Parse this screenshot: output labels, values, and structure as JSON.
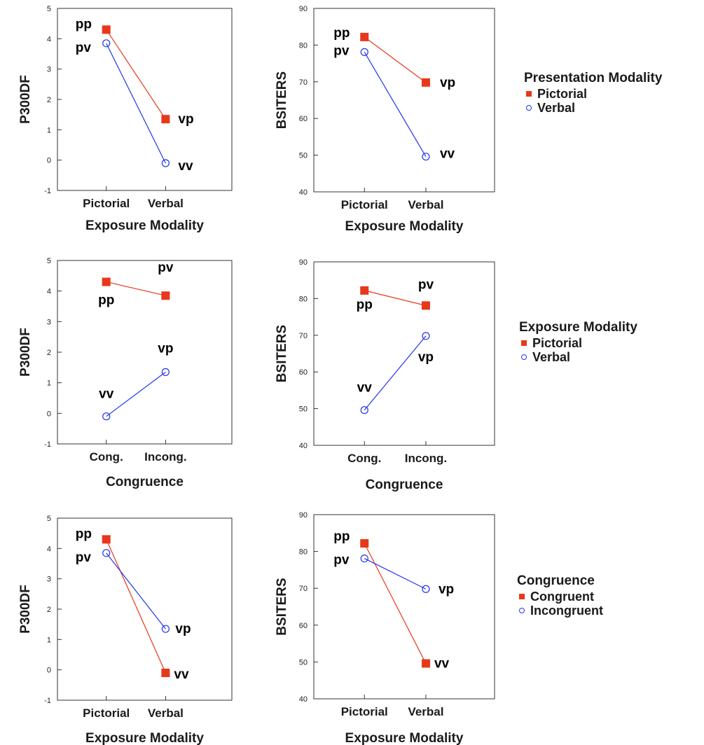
{
  "colors": {
    "red": "#e8381b",
    "blue": "#2233ee"
  },
  "legends": [
    {
      "title": "Presentation Modality",
      "items": [
        {
          "label": "Pictorial",
          "marker": "red-square"
        },
        {
          "label": "Verbal",
          "marker": "blue-circle"
        }
      ]
    },
    {
      "title": "Exposure Modality",
      "items": [
        {
          "label": "Pictorial",
          "marker": "red-square"
        },
        {
          "label": "Verbal",
          "marker": "blue-circle"
        }
      ]
    },
    {
      "title": "Congruence",
      "items": [
        {
          "label": "Congruent",
          "marker": "red-square"
        },
        {
          "label": "Incongruent",
          "marker": "blue-circle"
        }
      ]
    }
  ],
  "chart_data": [
    {
      "type": "line",
      "xlabel": "Exposure Modality",
      "ylabel": "P300DF",
      "categories": [
        "Pictorial",
        "Verbal"
      ],
      "ylim": [
        -1,
        5
      ],
      "yticks": [
        -1,
        0,
        1,
        2,
        3,
        4,
        5
      ],
      "series": [
        {
          "name": "Pictorial",
          "color": "red",
          "marker": "square",
          "values": [
            4.3,
            1.35
          ],
          "point_labels": [
            "pp",
            "vp"
          ]
        },
        {
          "name": "Verbal",
          "color": "blue",
          "marker": "circle",
          "values": [
            3.85,
            -0.1
          ],
          "point_labels": [
            "pv",
            "vv"
          ]
        }
      ]
    },
    {
      "type": "line",
      "xlabel": "Exposure Modality",
      "ylabel": "BSITERS",
      "categories": [
        "Pictorial",
        "Verbal"
      ],
      "ylim": [
        40,
        90
      ],
      "yticks": [
        40,
        50,
        60,
        70,
        80,
        90
      ],
      "series": [
        {
          "name": "Pictorial",
          "color": "red",
          "marker": "square",
          "values": [
            82.2,
            69.8
          ],
          "point_labels": [
            "pp",
            "vp"
          ]
        },
        {
          "name": "Verbal",
          "color": "blue",
          "marker": "circle",
          "values": [
            78.1,
            49.6
          ],
          "point_labels": [
            "pv",
            "vv"
          ]
        }
      ]
    },
    {
      "type": "line",
      "xlabel": "Congruence",
      "ylabel": "P300DF",
      "categories": [
        "Cong.",
        "Incong."
      ],
      "ylim": [
        -1,
        5
      ],
      "yticks": [
        -1,
        0,
        1,
        2,
        3,
        4,
        5
      ],
      "series": [
        {
          "name": "Pictorial",
          "color": "red",
          "marker": "square",
          "values": [
            4.3,
            3.85
          ],
          "point_labels": [
            "pp",
            "pv"
          ]
        },
        {
          "name": "Verbal",
          "color": "blue",
          "marker": "circle",
          "values": [
            -0.1,
            1.35
          ],
          "point_labels": [
            "vv",
            "vp"
          ]
        }
      ]
    },
    {
      "type": "line",
      "xlabel": "Congruence",
      "ylabel": "BSITERS",
      "categories": [
        "Cong.",
        "Incong."
      ],
      "ylim": [
        40,
        90
      ],
      "yticks": [
        40,
        50,
        60,
        70,
        80,
        90
      ],
      "series": [
        {
          "name": "Pictorial",
          "color": "red",
          "marker": "square",
          "values": [
            82.2,
            78.1
          ],
          "point_labels": [
            "pp",
            "pv"
          ]
        },
        {
          "name": "Verbal",
          "color": "blue",
          "marker": "circle",
          "values": [
            49.6,
            69.8
          ],
          "point_labels": [
            "vv",
            "vp"
          ]
        }
      ]
    },
    {
      "type": "line",
      "xlabel": "Exposure Modality",
      "ylabel": "P300DF",
      "categories": [
        "Pictorial",
        "Verbal"
      ],
      "ylim": [
        -1,
        5
      ],
      "yticks": [
        -1,
        0,
        1,
        2,
        3,
        4,
        5
      ],
      "series": [
        {
          "name": "Congruent",
          "color": "red",
          "marker": "square",
          "values": [
            4.3,
            -0.1
          ],
          "point_labels": [
            "pp",
            "vv"
          ]
        },
        {
          "name": "Incongruent",
          "color": "blue",
          "marker": "circle",
          "values": [
            3.85,
            1.35
          ],
          "point_labels": [
            "pv",
            "vp"
          ]
        }
      ]
    },
    {
      "type": "line",
      "xlabel": "Exposure Modality",
      "ylabel": "BSITERS",
      "categories": [
        "Pictorial",
        "Verbal"
      ],
      "ylim": [
        40,
        90
      ],
      "yticks": [
        40,
        50,
        60,
        70,
        80,
        90
      ],
      "series": [
        {
          "name": "Congruent",
          "color": "red",
          "marker": "square",
          "values": [
            82.2,
            49.6
          ],
          "point_labels": [
            "pp",
            "vv"
          ]
        },
        {
          "name": "Incongruent",
          "color": "blue",
          "marker": "circle",
          "values": [
            78.1,
            69.8
          ],
          "point_labels": [
            "pv",
            "vp"
          ]
        }
      ]
    }
  ]
}
